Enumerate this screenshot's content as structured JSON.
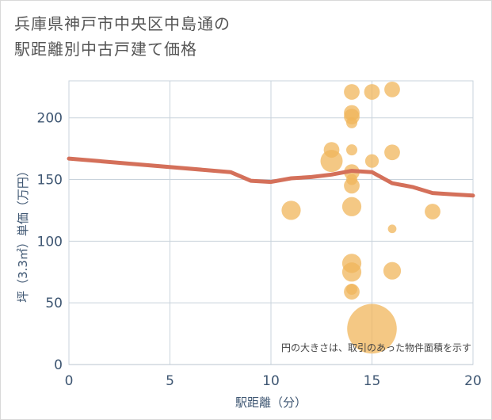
{
  "title_lines": [
    "兵庫県神戸市中央区中島通の",
    "駅距離別中古戸建て価格"
  ],
  "chart_data": {
    "type": "scatter",
    "title": "兵庫県神戸市中央区中島通の駅距離別中古戸建て価格",
    "xlabel": "駅距離（分）",
    "ylabel": "坪（3.3㎡）単価（万円）",
    "xlim": [
      0,
      20
    ],
    "ylim": [
      0,
      230
    ],
    "xticks": [
      0,
      5,
      10,
      15,
      20
    ],
    "yticks": [
      0,
      50,
      100,
      150,
      200
    ],
    "grid": true,
    "note": "円の大きさは、取引のあった物件面積を示す",
    "colors": {
      "bubble": "#f0b55b",
      "line": "#d4705a",
      "grid": "#c9d3dc",
      "tick": "#3e5672"
    },
    "scatter_points": [
      {
        "x": 11,
        "y": 125,
        "size": 3
      },
      {
        "x": 13,
        "y": 174,
        "size": 2
      },
      {
        "x": 13,
        "y": 165,
        "size": 4
      },
      {
        "x": 14,
        "y": 221,
        "size": 2
      },
      {
        "x": 14,
        "y": 204,
        "size": 2
      },
      {
        "x": 14,
        "y": 201,
        "size": 2
      },
      {
        "x": 14,
        "y": 196,
        "size": 1
      },
      {
        "x": 14,
        "y": 174,
        "size": 1
      },
      {
        "x": 14,
        "y": 156,
        "size": 2
      },
      {
        "x": 14,
        "y": 150,
        "size": 1
      },
      {
        "x": 14,
        "y": 145,
        "size": 2
      },
      {
        "x": 14,
        "y": 128,
        "size": 3
      },
      {
        "x": 14,
        "y": 82,
        "size": 3
      },
      {
        "x": 14,
        "y": 75,
        "size": 3
      },
      {
        "x": 14,
        "y": 61,
        "size": 1
      },
      {
        "x": 14,
        "y": 59,
        "size": 2
      },
      {
        "x": 15,
        "y": 221,
        "size": 2
      },
      {
        "x": 15,
        "y": 165,
        "size": 1.5
      },
      {
        "x": 15,
        "y": 29,
        "size": 20
      },
      {
        "x": 16,
        "y": 223,
        "size": 2
      },
      {
        "x": 16,
        "y": 172,
        "size": 2
      },
      {
        "x": 16,
        "y": 110,
        "size": 0.6
      },
      {
        "x": 16,
        "y": 76,
        "size": 2.5
      },
      {
        "x": 18,
        "y": 124,
        "size": 2
      }
    ],
    "line": {
      "x": [
        0,
        8,
        9,
        10,
        11,
        12,
        13,
        14,
        15,
        16,
        17,
        18,
        19,
        20
      ],
      "y": [
        167,
        156,
        149,
        148,
        151,
        152,
        154,
        157,
        156,
        147,
        144,
        139,
        138,
        137
      ]
    }
  }
}
